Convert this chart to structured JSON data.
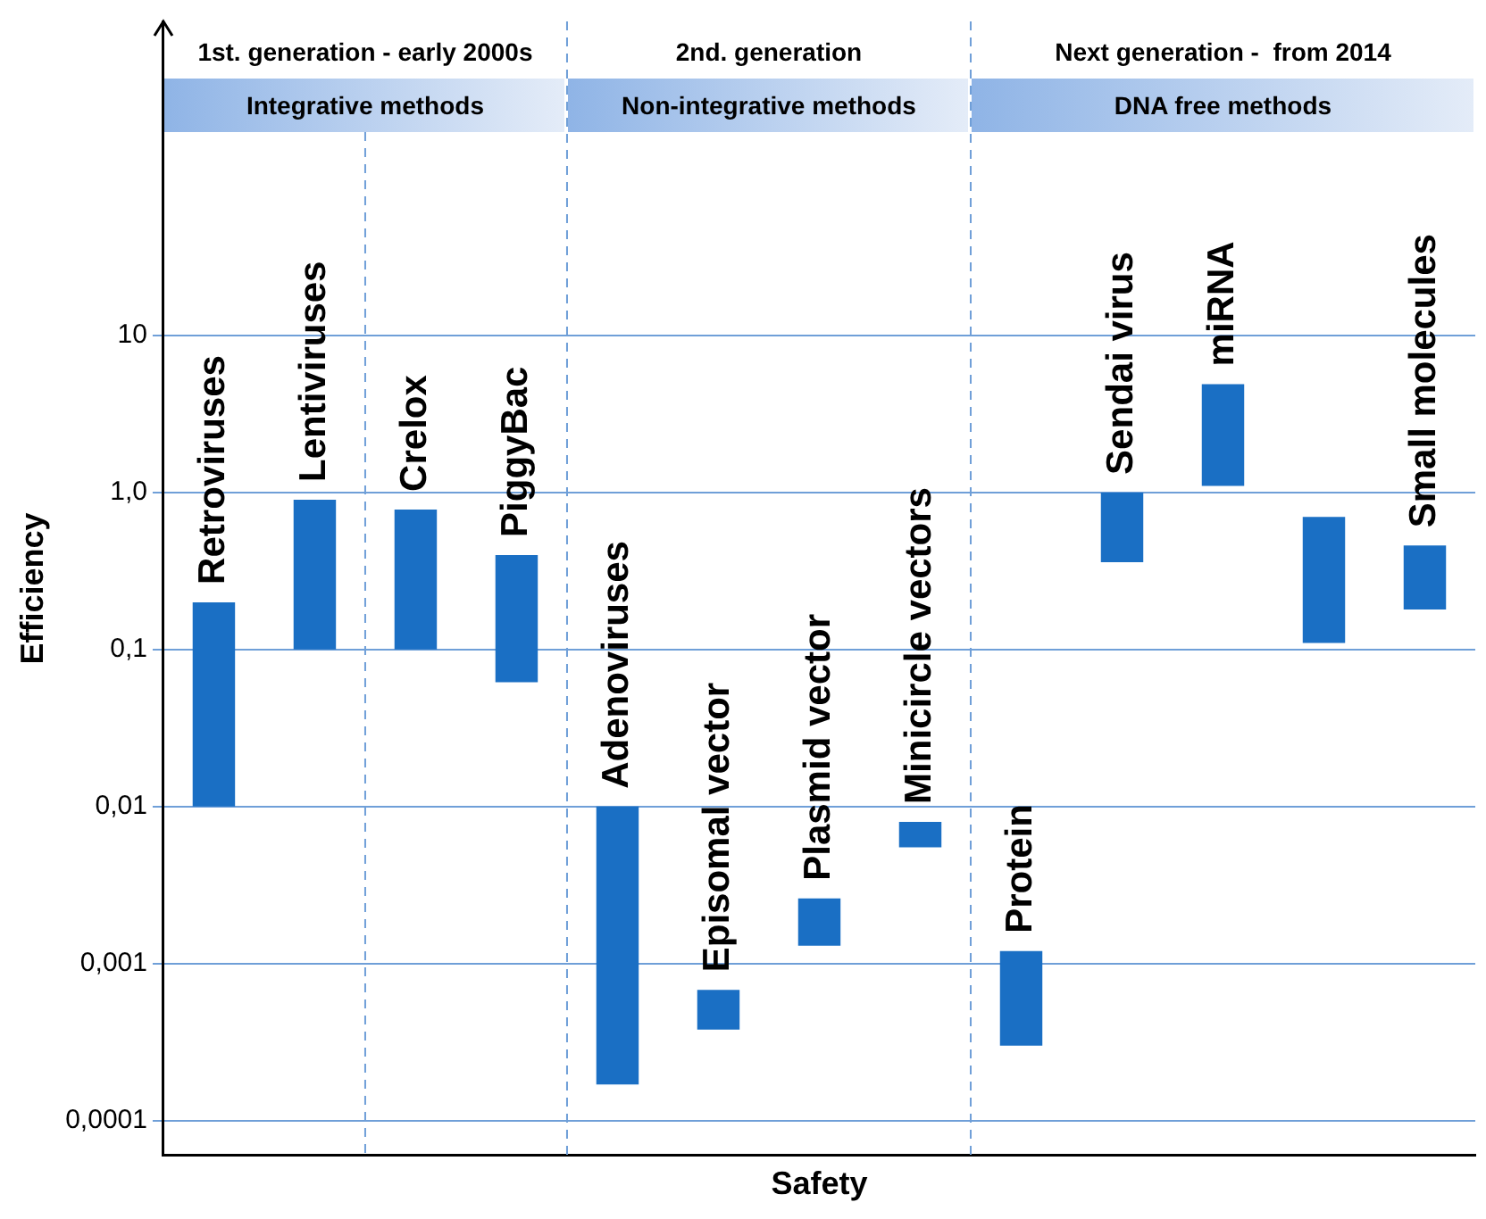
{
  "chart_data": {
    "type": "bar",
    "xlabel": "Safety",
    "ylabel": "Efficiency",
    "categories": [
      "Retroviruses",
      "Lentiviruses",
      "Crelox",
      "PiggyBac",
      "Adenoviruses",
      "Episomal vector",
      "Plasmid vector",
      "Minicircle vectors",
      "Protein",
      "Sendai virus",
      "miRNA",
      null,
      "Small molecules"
    ],
    "base": [
      0.01,
      0.1,
      0.1,
      0.062,
      0.00017,
      0.00038,
      0.0013,
      0.0055,
      0.0003,
      0.36,
      1.1,
      0.11,
      0.18
    ],
    "values": [
      0.19,
      0.8,
      0.68,
      0.338,
      0.00983,
      0.0003,
      0.0013,
      0.0025,
      0.0009,
      0.64,
      3.8,
      0.59,
      0.28
    ],
    "color": "#1a6fc4",
    "log": true,
    "ylim": [
      6e-05,
      1000
    ],
    "yticks": [
      {
        "value": 0.0001,
        "label": "0,0001"
      },
      {
        "value": 0.001,
        "label": "0,001"
      },
      {
        "value": 0.01,
        "label": "0,01"
      },
      {
        "value": 0.1,
        "label": "0,1"
      },
      {
        "value": 1,
        "label": "1,0"
      },
      10
    ],
    "grid": "y",
    "tick_labels": "y",
    "legend": false,
    "annotations": [
      "1st. generation - early 2000s",
      "2nd. generation",
      "Next generation -  from 2014",
      "Integrative methods",
      "Non-integrative methods",
      "DNA free methods"
    ]
  }
}
